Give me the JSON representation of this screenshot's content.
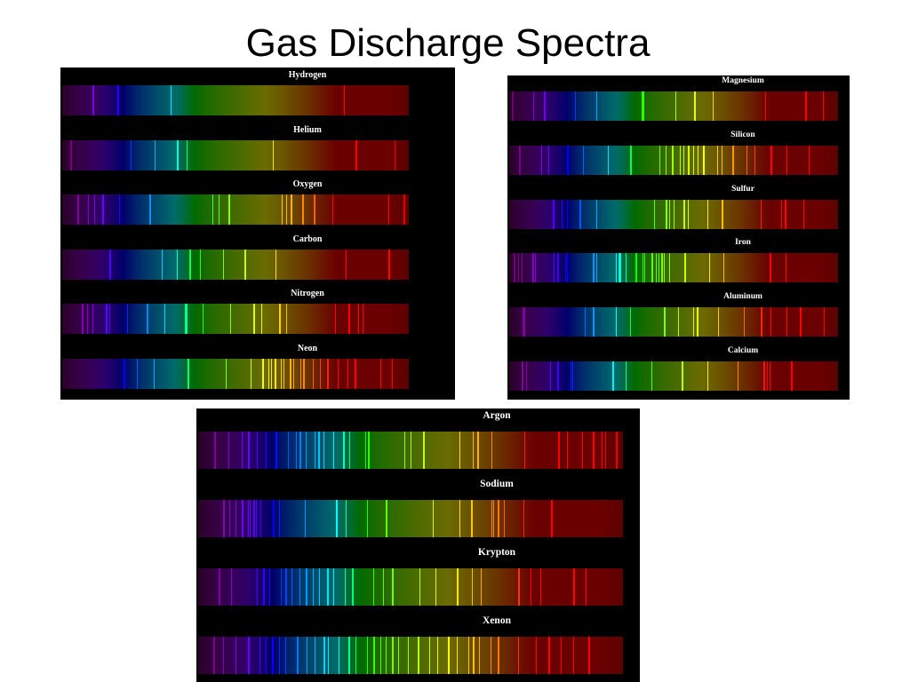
{
  "title": "Gas Discharge Spectra",
  "panels": [
    {
      "id": "panel-a",
      "elements": [
        {
          "name": "Hydrogen",
          "lines": [
            434,
            486,
            656,
            410
          ]
        },
        {
          "name": "Helium",
          "lines": [
            388,
            447,
            471,
            492,
            502,
            587,
            668,
            706
          ]
        },
        {
          "name": "Oxygen",
          "lines": [
            395,
            405,
            411,
            419,
            420,
            436,
            465,
            527,
            533,
            543,
            595,
            600,
            604,
            615,
            616,
            627,
            645,
            700,
            715
          ]
        },
        {
          "name": "Carbon",
          "lines": [
            426,
            478,
            492,
            505,
            515,
            538,
            559,
            589,
            658,
            700
          ]
        },
        {
          "name": "Nitrogen",
          "lines": [
            399,
            404,
            410,
            423,
            426,
            444,
            463,
            480,
            500,
            501,
            518,
            545,
            567,
            568,
            575,
            593,
            600,
            648,
            661,
            670,
            675
          ]
        },
        {
          "name": "Neon",
          "lines": [
            440,
            453,
            470,
            503,
            540,
            565,
            576,
            582,
            585,
            588,
            594,
            597,
            603,
            607,
            614,
            616,
            626,
            633,
            640,
            650,
            660,
            667,
            692,
            703
          ]
        }
      ]
    },
    {
      "id": "panel-b",
      "elements": [
        {
          "name": "Magnesium",
          "lines": [
            383,
            384,
            405,
            416,
            448,
            470,
            518,
            517,
            552,
            571,
            590,
            645,
            686,
            704
          ]
        },
        {
          "name": "Silicon",
          "lines": [
            390,
            413,
            420,
            440,
            456,
            482,
            505,
            535,
            542,
            548,
            556,
            560,
            565,
            570,
            575,
            580,
            595,
            600,
            611,
            625,
            634,
            650,
            667,
            690
          ]
        },
        {
          "name": "Sulfur",
          "lines": [
            425,
            434,
            440,
            453,
            470,
            530,
            542,
            545,
            550,
            560,
            565,
            585,
            600,
            640,
            661,
            665,
            684
          ]
        },
        {
          "name": "Iron",
          "lines": [
            385,
            389,
            393,
            404,
            407,
            426,
            430,
            438,
            440,
            466,
            470,
            490,
            493,
            495,
            500,
            510,
            518,
            520,
            527,
            532,
            534,
            537,
            540,
            545,
            561,
            587,
            601,
            649,
            666
          ]
        },
        {
          "name": "Aluminum",
          "lines": [
            394,
            396,
            458,
            466,
            490,
            505,
            540,
            555,
            570,
            574,
            596,
            623,
            640,
            650,
            667,
            680,
            705
          ]
        },
        {
          "name": "Calcium",
          "lines": [
            393,
            397,
            422,
            430,
            443,
            445,
            487,
            500,
            527,
            558,
            585,
            616,
            643,
            646,
            649,
            671,
            720
          ]
        }
      ]
    },
    {
      "id": "panel-c",
      "elements": [
        {
          "name": "Argon",
          "lines": [
            393,
            404,
            415,
            420,
            427,
            434,
            442,
            452,
            458,
            461,
            466,
            473,
            476,
            480,
            488,
            496,
            501,
            514,
            516,
            545,
            550,
            560,
            589,
            600,
            603,
            615,
            641,
            668,
            675,
            687,
            696,
            703,
            706,
            714
          ]
        },
        {
          "name": "Sodium",
          "lines": [
            400,
            405,
            410,
            415,
            420,
            421,
            424,
            426,
            430,
            440,
            445,
            465,
            490,
            498,
            515,
            530,
            568,
            589,
            598,
            615,
            616,
            620,
            625,
            640,
            662
          ]
        },
        {
          "name": "Krypton",
          "lines": [
            396,
            406,
            427,
            432,
            437,
            446,
            450,
            455,
            461,
            466,
            472,
            477,
            483,
            488,
            497,
            503,
            520,
            528,
            535,
            557,
            570,
            587,
            599,
            606,
            636,
            646,
            654,
            680,
            690
          ]
        },
        {
          "name": "Xenon",
          "lines": [
            392,
            400,
            410,
            420,
            429,
            434,
            439,
            445,
            450,
            459,
            467,
            473,
            480,
            484,
            492,
            500,
            506,
            515,
            520,
            526,
            530,
            535,
            540,
            548,
            556,
            565,
            571,
            580,
            587,
            596,
            600,
            605,
            614,
            620,
            636,
            650,
            660,
            670,
            680,
            692
          ]
        }
      ]
    }
  ]
}
